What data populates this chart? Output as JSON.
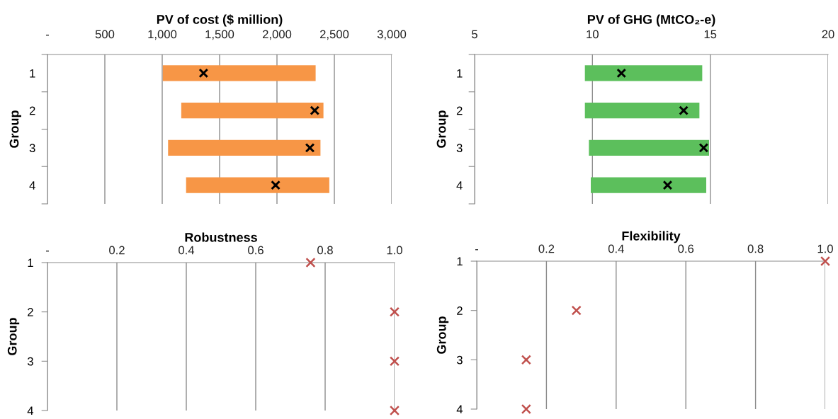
{
  "chart_data": [
    {
      "type": "bar",
      "orientation": "horizontal",
      "title": "PV of cost ($ million)",
      "ylabel": "Group",
      "categories": [
        "1",
        "2",
        "3",
        "4"
      ],
      "series": [
        {
          "type": "bar",
          "color": "#f79646",
          "base": [
            1005,
            1166,
            1051,
            1208
          ],
          "values": [
            1332,
            1239,
            1328,
            1248
          ]
        },
        {
          "type": "scatter",
          "color": "#000000",
          "marker": "cross",
          "values": [
            1360,
            2329,
            2287,
            1988
          ]
        }
      ],
      "xlim": [
        0,
        3000
      ],
      "xticks": [
        {
          "value": 0,
          "label": "-"
        },
        500,
        {
          "value": 1000,
          "label": "1,000"
        },
        {
          "value": 1500,
          "label": "1,500"
        },
        {
          "value": 2000,
          "label": "2,000"
        },
        {
          "value": 2500,
          "label": "2,500"
        },
        {
          "value": 3000,
          "label": "3,000"
        }
      ],
      "grid": "x"
    },
    {
      "type": "bar",
      "orientation": "horizontal",
      "title": "PV of GHG (MtCO₂-e)",
      "ylabel": "Group",
      "categories": [
        "1",
        "2",
        "3",
        "4"
      ],
      "series": [
        {
          "type": "bar",
          "color": "#5cbf5c",
          "base": [
            9.68,
            9.68,
            9.85,
            9.93
          ],
          "values": [
            4.98,
            4.86,
            5.1,
            4.9
          ]
        },
        {
          "type": "scatter",
          "color": "#000000",
          "marker": "cross",
          "values": [
            11.23,
            13.87,
            14.72,
            13.19
          ]
        }
      ],
      "xlim": [
        5,
        20
      ],
      "xticks": [
        5,
        10,
        15,
        20
      ],
      "grid": "x"
    },
    {
      "type": "scatter",
      "orientation": "horizontal",
      "title": "Robustness",
      "ylabel": "Group",
      "categories": [
        "1",
        "2",
        "3",
        "4"
      ],
      "series": [
        {
          "type": "scatter",
          "color": "#c0504d",
          "marker": "cross",
          "values": [
            0.758,
            1.0,
            1.0,
            1.0
          ]
        }
      ],
      "xlim": [
        0,
        1
      ],
      "xticks": [
        {
          "value": 0,
          "label": "-"
        },
        0.2,
        0.4,
        0.6,
        0.8,
        {
          "value": 1,
          "label": "1.0"
        }
      ],
      "grid": "x"
    },
    {
      "type": "scatter",
      "orientation": "horizontal",
      "title": "Flexibility",
      "ylabel": "Group",
      "categories": [
        "1",
        "2",
        "3",
        "4"
      ],
      "series": [
        {
          "type": "scatter",
          "color": "#c0504d",
          "marker": "cross",
          "values": [
            1.0,
            0.286,
            0.142,
            0.142
          ]
        }
      ],
      "xlim": [
        0,
        1
      ],
      "xticks": [
        {
          "value": 0,
          "label": "-"
        },
        0.2,
        0.4,
        0.6,
        0.8,
        {
          "value": 1,
          "label": "1.0"
        }
      ],
      "grid": "x"
    }
  ]
}
